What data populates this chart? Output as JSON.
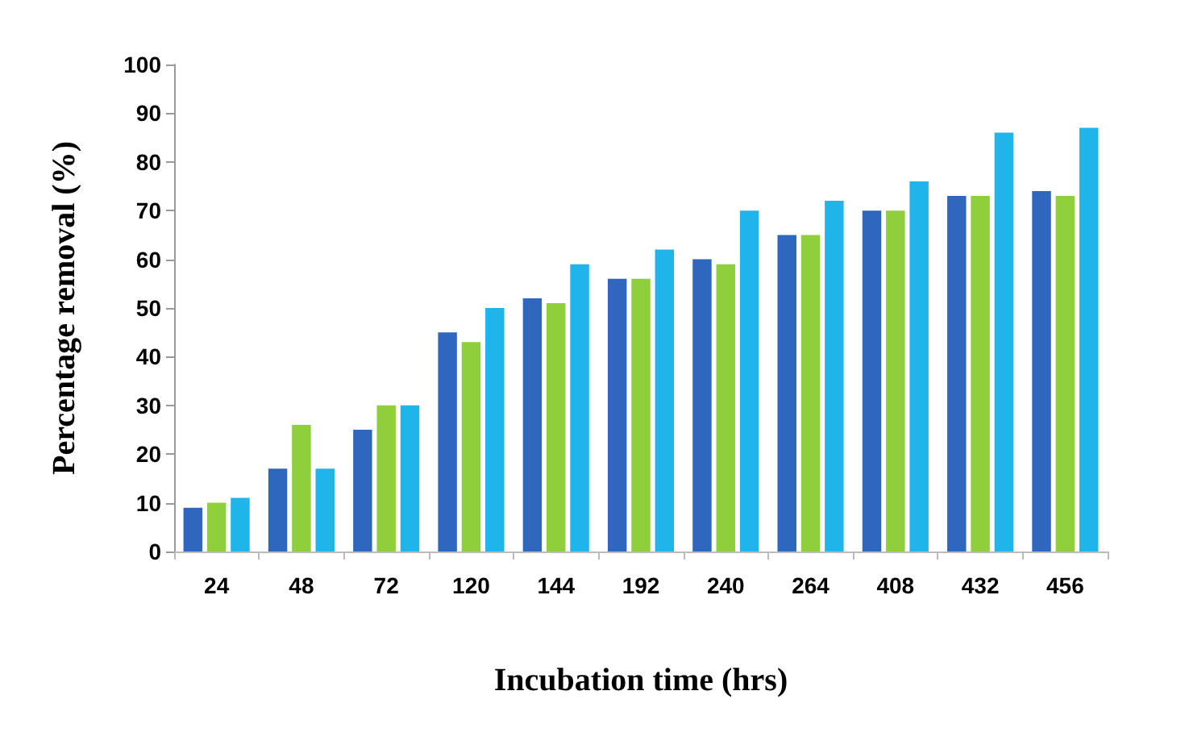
{
  "chart_data": {
    "type": "bar",
    "xlabel": "Incubation time (hrs)",
    "ylabel": "Percentage removal (%)",
    "categories": [
      "24",
      "48",
      "72",
      "120",
      "144",
      "192",
      "240",
      "264",
      "408",
      "432",
      "456"
    ],
    "series": [
      {
        "color": "#2f67bf",
        "values": [
          9,
          17,
          25,
          45,
          52,
          56,
          60,
          65,
          70,
          73,
          74
        ]
      },
      {
        "color": "#8fcf3c",
        "values": [
          10,
          26,
          30,
          43,
          51,
          56,
          59,
          65,
          70,
          73,
          73
        ]
      },
      {
        "color": "#1fb4ea",
        "values": [
          11,
          17,
          30,
          50,
          59,
          62,
          70,
          72,
          76,
          86,
          87
        ]
      }
    ],
    "ylim": [
      0,
      100
    ],
    "yticks": [
      0,
      10,
      20,
      30,
      40,
      50,
      60,
      70,
      80,
      90,
      100
    ]
  }
}
